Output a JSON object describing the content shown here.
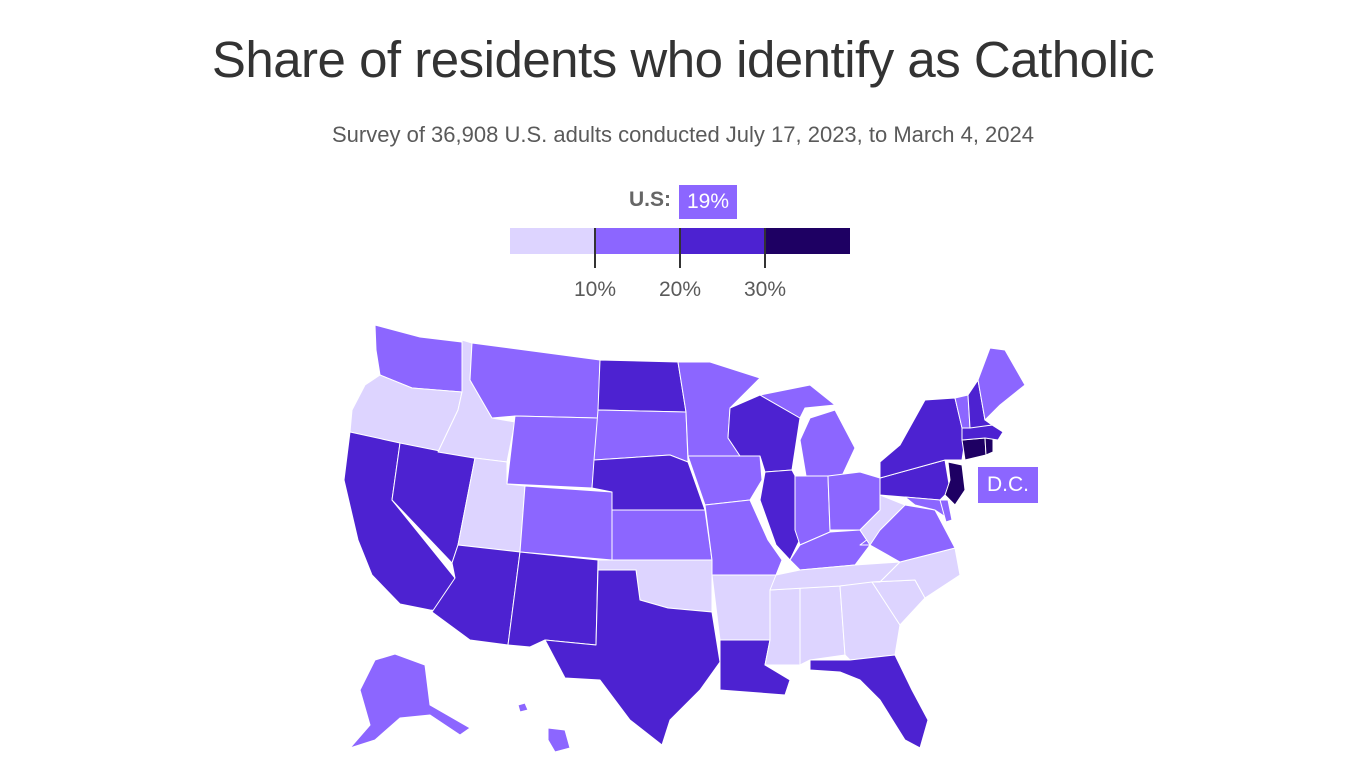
{
  "title": "Share of residents who identify as Catholic",
  "subtitle": "Survey of 36,908 U.S. adults conducted July 17, 2023, to March 4, 2024",
  "national": {
    "label": "U.S:",
    "value": "19%"
  },
  "legend": {
    "bins": [
      "#ddd4ff",
      "#8c66ff",
      "#4d22d1",
      "#1e0063"
    ],
    "ticks": [
      "10%",
      "20%",
      "30%"
    ]
  },
  "dc_label": "D.C.",
  "chart_data": {
    "type": "choropleth",
    "title": "Share of residents who identify as Catholic",
    "bin_thresholds_percent": [
      10,
      20,
      30
    ],
    "national_value_percent": 19,
    "state_bins": {
      "bin_under_10": [
        "OR",
        "ID",
        "UT",
        "OK",
        "AR",
        "TN",
        "MS",
        "AL",
        "GA",
        "SC",
        "NC",
        "WV"
      ],
      "bin_10_to_20": [
        "WA",
        "MT",
        "WY",
        "CO",
        "SD",
        "MN",
        "IA",
        "KS",
        "MO",
        "MI",
        "IN",
        "OH",
        "KY",
        "VA",
        "ME",
        "VT",
        "AK",
        "HI",
        "MD",
        "DE",
        "DC"
      ],
      "bin_20_to_30": [
        "CA",
        "NV",
        "AZ",
        "NM",
        "TX",
        "LA",
        "FL",
        "ND",
        "NE",
        "WI",
        "IL",
        "NY",
        "PA",
        "NH",
        "MA"
      ],
      "bin_30_plus": [
        "CT",
        "NJ",
        "RI"
      ]
    }
  }
}
